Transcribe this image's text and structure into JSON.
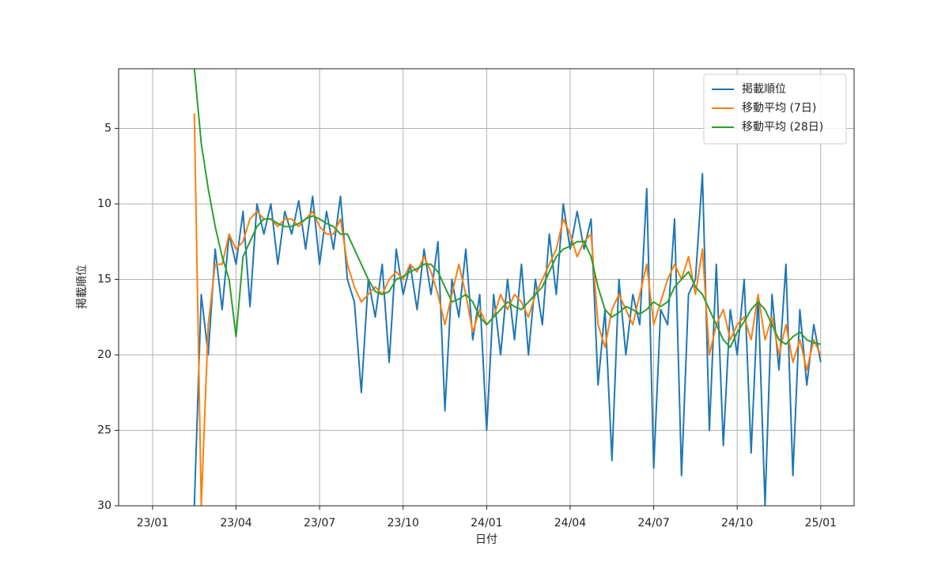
{
  "chart_data": {
    "type": "line",
    "xlabel": "日付",
    "ylabel": "掲載順位",
    "xlim": [
      -1.22,
      25.2
    ],
    "ylim": [
      30,
      1.05
    ],
    "y_inverted": true,
    "xticks": [
      {
        "value": 0,
        "label": "23/01"
      },
      {
        "value": 3,
        "label": "23/04"
      },
      {
        "value": 6,
        "label": "23/07"
      },
      {
        "value": 9,
        "label": "23/10"
      },
      {
        "value": 12,
        "label": "24/01"
      },
      {
        "value": 15,
        "label": "24/04"
      },
      {
        "value": 18,
        "label": "24/07"
      },
      {
        "value": 21,
        "label": "24/10"
      },
      {
        "value": 24,
        "label": "25/01"
      }
    ],
    "yticks": [
      5,
      10,
      15,
      20,
      25,
      30
    ],
    "grid": true,
    "legend": "upper right",
    "x": [
      1.5,
      1.75,
      2,
      2.25,
      2.5,
      2.75,
      3,
      3.25,
      3.5,
      3.75,
      4,
      4.25,
      4.5,
      4.75,
      5,
      5.25,
      5.5,
      5.75,
      6,
      6.25,
      6.5,
      6.75,
      7,
      7.25,
      7.5,
      7.75,
      8,
      8.25,
      8.5,
      8.75,
      9,
      9.25,
      9.5,
      9.75,
      10,
      10.25,
      10.5,
      10.75,
      11,
      11.25,
      11.5,
      11.75,
      12,
      12.25,
      12.5,
      12.75,
      13,
      13.25,
      13.5,
      13.75,
      14,
      14.25,
      14.5,
      14.75,
      15,
      15.25,
      15.5,
      15.75,
      16,
      16.25,
      16.5,
      16.75,
      17,
      17.25,
      17.5,
      17.75,
      18,
      18.25,
      18.5,
      18.75,
      19,
      19.25,
      19.5,
      19.75,
      20,
      20.25,
      20.5,
      20.75,
      21,
      21.25,
      21.5,
      21.75,
      22,
      22.25,
      22.5,
      22.75,
      23,
      23.25,
      23.5,
      23.75,
      24
    ],
    "series": [
      {
        "name": "掲載順位",
        "color": "#1f77b4",
        "values": [
          30,
          16,
          20,
          13,
          17,
          12,
          14,
          10.5,
          16.8,
          10,
          12,
          10,
          14,
          10.5,
          12,
          9.8,
          13,
          9.5,
          14,
          10.5,
          13,
          9.5,
          15,
          16.5,
          22.5,
          15,
          17.5,
          14,
          20.5,
          13,
          16,
          14,
          17,
          13,
          16,
          12.5,
          23.7,
          15,
          17.5,
          13,
          19,
          16,
          25,
          16,
          20,
          15,
          19,
          14,
          20,
          15,
          18,
          12,
          16,
          10,
          13,
          10.5,
          13,
          11,
          22,
          17,
          27,
          15,
          20,
          16,
          18,
          9,
          27.5,
          17,
          18,
          11,
          28,
          16,
          15,
          8,
          25,
          14,
          26,
          17,
          20,
          15,
          26.5,
          16,
          30,
          16,
          21,
          14,
          28,
          17,
          22,
          18,
          20.5
        ]
      },
      {
        "name": "移動平均 (7日)",
        "color": "#ff7f0e",
        "values": [
          4,
          30,
          18,
          14,
          14,
          12,
          13,
          12.5,
          11,
          10.5,
          11,
          11,
          11.5,
          11,
          11,
          11.5,
          11,
          10.5,
          11.5,
          12,
          12,
          11,
          14,
          15.5,
          16.5,
          16,
          15.5,
          16,
          15,
          14.5,
          15,
          14,
          14.5,
          13.5,
          14.5,
          16,
          18,
          16,
          14,
          16,
          18.5,
          17,
          18,
          17.5,
          16,
          17,
          16,
          16.5,
          17.5,
          16,
          15,
          14,
          13,
          11,
          12,
          13.5,
          12.5,
          12,
          18,
          19.5,
          17,
          16,
          17,
          18,
          16,
          14,
          18,
          16.5,
          15,
          14,
          15,
          13.5,
          16,
          13,
          20,
          18,
          17,
          19,
          18,
          17.5,
          19,
          16,
          19,
          17.5,
          20,
          18,
          20.5,
          19,
          21,
          19,
          20
        ]
      },
      {
        "name": "移動平均 (28日)",
        "color": "#2ca02c",
        "values": [
          1,
          6,
          9,
          11.5,
          13.5,
          15,
          18.8,
          13.5,
          12.5,
          11.5,
          11,
          11,
          11.3,
          11.5,
          11.5,
          11.3,
          11,
          10.8,
          11,
          11.3,
          11.5,
          12,
          12,
          13,
          14,
          15,
          15.8,
          16,
          15.8,
          15,
          14.8,
          14.5,
          14.3,
          14,
          14,
          14.5,
          15.5,
          16.5,
          16.3,
          16,
          16.5,
          17.5,
          18,
          17.5,
          17,
          16.5,
          16.8,
          17,
          16.5,
          16,
          15.5,
          14.5,
          13.5,
          13,
          12.8,
          12.5,
          12.5,
          13.5,
          15.5,
          17,
          17.5,
          17.2,
          16.8,
          17,
          17.3,
          17,
          16.5,
          16.8,
          16.5,
          15.5,
          15,
          14.5,
          15.5,
          16,
          17,
          18,
          19,
          19.5,
          18.5,
          17.8,
          17,
          16.5,
          17,
          18,
          19,
          19.3,
          18.8,
          18.5,
          19,
          19.2,
          19.3
        ]
      }
    ]
  }
}
